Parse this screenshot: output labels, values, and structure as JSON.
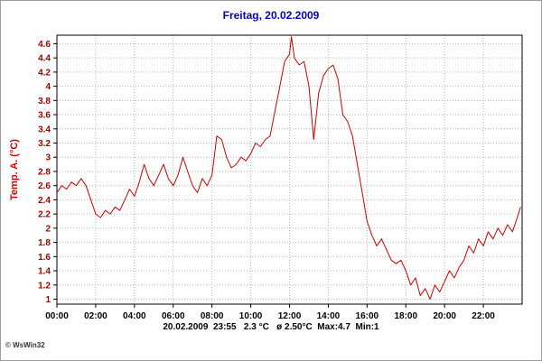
{
  "window": {
    "title": "Freitag, 20.02.2009",
    "copyright": "© WsWin32",
    "status_line": "20.02.2009  23:55   2.3 °C   ø 2.50°C  Max:4.7  Min:1"
  },
  "chart_data": {
    "type": "line",
    "title": "Freitag, 20.02.2009",
    "xlabel": "",
    "ylabel": "Temp. A. (°C)",
    "grid": true,
    "legend_position": "none",
    "line_color": "#cc0000",
    "title_color": "#0000cc",
    "y_axis_color": "#990000",
    "x_axis_color": "#000000",
    "grid_color": "#b4b4b4",
    "xlim_hours": [
      0,
      24
    ],
    "ylim": [
      0.93,
      4.72
    ],
    "x_tick_labels": [
      "00:00",
      "02:00",
      "04:00",
      "06:00",
      "08:00",
      "10:00",
      "12:00",
      "14:00",
      "16:00",
      "18:00",
      "20:00",
      "22:00"
    ],
    "y_ticks": [
      "4.6",
      "4.4",
      "4.2",
      "4",
      "3.8",
      "3.6",
      "3.4",
      "3.2",
      "3",
      "2.8",
      "2.6",
      "2.4",
      "2.2",
      "2",
      "1.8",
      "1.6",
      "1.4",
      "1.2",
      "1"
    ],
    "stats": {
      "date": "20.02.2009",
      "time": "23:55",
      "current_temp_c": 2.3,
      "average_temp_c": 2.5,
      "max_temp_c": 4.7,
      "min_temp_c": 1
    },
    "series": [
      {
        "name": "Temp. A. (°C)",
        "x_hours": [
          0,
          0.25,
          0.5,
          0.75,
          1,
          1.25,
          1.5,
          1.75,
          2,
          2.25,
          2.5,
          2.75,
          3,
          3.25,
          3.5,
          3.75,
          4,
          4.25,
          4.5,
          4.75,
          5,
          5.25,
          5.5,
          5.75,
          6,
          6.25,
          6.5,
          6.75,
          7,
          7.25,
          7.5,
          7.75,
          8,
          8.25,
          8.5,
          8.75,
          9,
          9.25,
          9.5,
          9.75,
          10,
          10.25,
          10.5,
          10.75,
          11,
          11.25,
          11.5,
          11.75,
          12,
          12.1,
          12.25,
          12.5,
          12.75,
          13,
          13.25,
          13.5,
          13.75,
          14,
          14.25,
          14.5,
          14.75,
          15,
          15.25,
          15.5,
          15.75,
          16,
          16.25,
          16.5,
          16.75,
          17,
          17.25,
          17.5,
          17.75,
          18,
          18.25,
          18.5,
          18.75,
          19,
          19.25,
          19.5,
          19.75,
          20,
          20.25,
          20.5,
          20.75,
          21,
          21.25,
          21.5,
          21.75,
          22,
          22.25,
          22.5,
          22.75,
          23,
          23.25,
          23.5,
          23.75,
          23.92
        ],
        "values": [
          2.5,
          2.6,
          2.55,
          2.65,
          2.6,
          2.7,
          2.6,
          2.4,
          2.2,
          2.15,
          2.25,
          2.2,
          2.3,
          2.25,
          2.4,
          2.55,
          2.45,
          2.65,
          2.9,
          2.7,
          2.6,
          2.75,
          2.9,
          2.7,
          2.6,
          2.75,
          3.0,
          2.8,
          2.6,
          2.5,
          2.7,
          2.6,
          2.75,
          3.3,
          3.25,
          3.0,
          2.85,
          2.9,
          3.0,
          2.95,
          3.05,
          3.2,
          3.15,
          3.25,
          3.3,
          3.65,
          4.0,
          4.35,
          4.45,
          4.7,
          4.4,
          4.3,
          4.35,
          4.0,
          3.25,
          3.9,
          4.15,
          4.25,
          4.3,
          4.1,
          3.6,
          3.5,
          3.3,
          2.9,
          2.5,
          2.1,
          1.9,
          1.75,
          1.85,
          1.7,
          1.55,
          1.5,
          1.55,
          1.4,
          1.2,
          1.3,
          1.05,
          1.15,
          1.0,
          1.2,
          1.1,
          1.25,
          1.4,
          1.3,
          1.45,
          1.55,
          1.75,
          1.65,
          1.85,
          1.75,
          1.95,
          1.85,
          2.0,
          1.9,
          2.05,
          1.95,
          2.15,
          2.3
        ]
      }
    ]
  }
}
